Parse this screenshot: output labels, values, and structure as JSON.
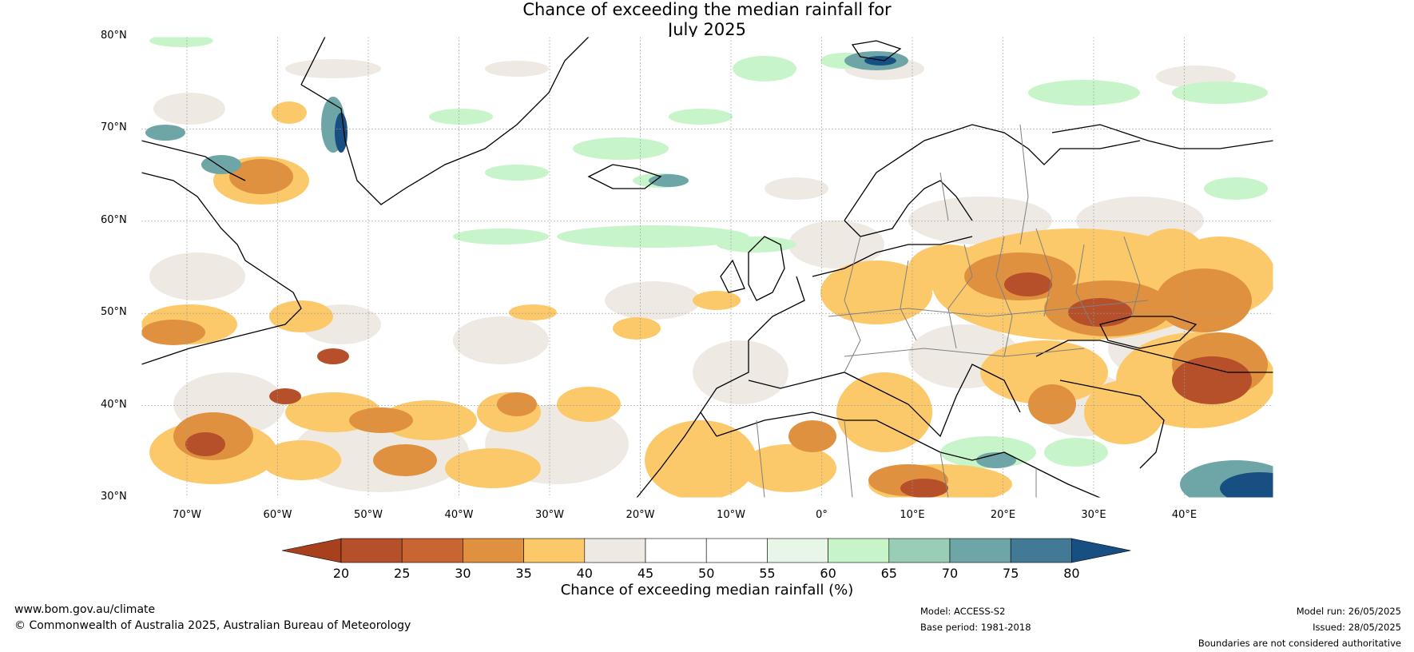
{
  "title": {
    "line1": "Chance of exceeding the median rainfall for",
    "line2": "July 2025"
  },
  "lat_labels": [
    "80°N",
    "70°N",
    "60°N",
    "50°N",
    "40°N",
    "30°N"
  ],
  "lon_labels": [
    "70°W",
    "60°W",
    "50°W",
    "40°W",
    "30°W",
    "20°W",
    "10°W",
    "0°",
    "10°E",
    "20°E",
    "30°E",
    "40°E"
  ],
  "colorbar": {
    "title": "Chance of exceeding median rainfall (%)",
    "ticks": [
      "20",
      "25",
      "30",
      "35",
      "40",
      "45",
      "50",
      "55",
      "60",
      "65",
      "70",
      "75",
      "80"
    ],
    "colors": [
      "#a8401e",
      "#b5502a",
      "#c96532",
      "#e0913f",
      "#fcc96a",
      "#eee9e3",
      "#ffffff",
      "#ffffff",
      "#e8f6e8",
      "#c7f4c8",
      "#99cdb5",
      "#6ea6a8",
      "#427a96",
      "#174f82"
    ]
  },
  "footer": {
    "website": "www.bom.gov.au/climate",
    "copyright": "© Commonwealth of Australia 2025, Australian Bureau of Meteorology",
    "model": "Model: ACCESS-S2",
    "base_period": "Base period: 1981-2018",
    "model_run": "Model run: 26/05/2025",
    "issued": "Issued: 28/05/2025",
    "disclaimer": "Boundaries are not considered authoritative"
  },
  "map_colors": {
    "ocean_land_bg": "#ffffff",
    "dry_strong": "#b5502a",
    "dry": "#e0913f",
    "dry_light": "#fcc96a",
    "neutral": "#eee9e3",
    "wet_light": "#c7f4c8",
    "wet": "#6ea6a8",
    "wet_strong": "#174f82",
    "coast": "#000000",
    "borders": "#808080",
    "grid": "#999999"
  }
}
